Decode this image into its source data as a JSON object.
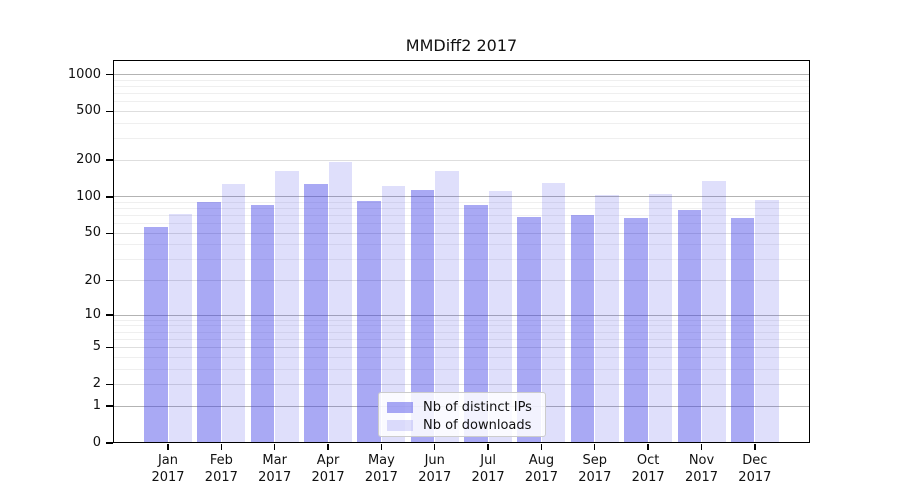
{
  "figure": {
    "background": "#ffffff"
  },
  "chart_data": {
    "type": "bar",
    "title": "MMDiff2 2017",
    "xlabel": "",
    "ylabel": "",
    "year": "2017",
    "months": [
      "Jan",
      "Feb",
      "Mar",
      "Apr",
      "May",
      "Jun",
      "Jul",
      "Aug",
      "Sep",
      "Oct",
      "Nov",
      "Dec"
    ],
    "categories": [
      "Jan 2017",
      "Feb 2017",
      "Mar 2017",
      "Apr 2017",
      "May 2017",
      "Jun 2017",
      "Jul 2017",
      "Aug 2017",
      "Sep 2017",
      "Oct 2017",
      "Nov 2017",
      "Dec 2017"
    ],
    "series": [
      {
        "name": "Nb of distinct IPs",
        "color": "rgba(55,55,230,0.43)",
        "values": [
          56,
          90,
          85,
          128,
          92,
          115,
          85,
          68,
          71,
          67,
          78,
          67
        ]
      },
      {
        "name": "Nb of downloads",
        "color": "rgba(55,55,230,0.16)",
        "values": [
          72,
          128,
          162,
          192,
          124,
          163,
          112,
          130,
          103,
          105,
          134,
          95
        ]
      }
    ],
    "yticks": [
      0,
      1,
      2,
      5,
      10,
      20,
      50,
      100,
      200,
      500,
      1000
    ],
    "ytick_labels": [
      "0",
      "1",
      "2",
      "5",
      "10",
      "20",
      "50",
      "100",
      "200",
      "500",
      "1000"
    ],
    "labeled_grid_values": [
      2,
      5,
      20,
      50,
      200,
      500
    ],
    "major_grid_values": [
      1,
      10,
      100,
      1000
    ],
    "y_scale": "log10(1+v)",
    "ylim": [
      0,
      1320
    ],
    "grid": true,
    "legend_position": "lower-center",
    "colors": {
      "grid_major": "#b3b3b3",
      "grid_labeled": "#dedede",
      "grid_minor": "#efefef",
      "axis": "#000000",
      "text": "#111111"
    }
  }
}
